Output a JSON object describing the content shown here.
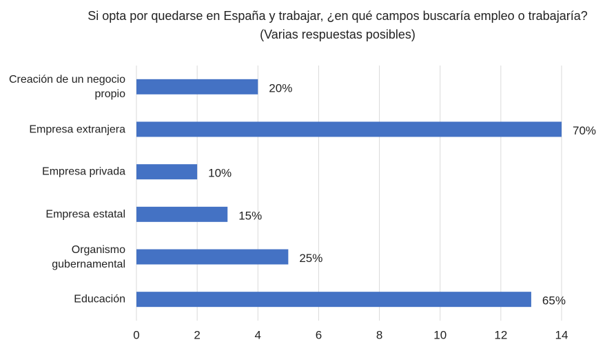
{
  "chart_data": {
    "type": "bar",
    "orientation": "horizontal",
    "title": "Si opta por quedarse en España y trabajar, ¿en qué campos buscaría empleo o trabajaría? (Varias respuestas posibles)",
    "categories": [
      "Creación de un negocio propio",
      "Empresa extranjera",
      "Empresa privada",
      "Empresa estatal",
      "Organismo gubernamental",
      "Educación"
    ],
    "values": [
      4,
      14,
      2,
      3,
      5,
      13
    ],
    "value_labels": [
      "20%",
      "70%",
      "10%",
      "15%",
      "25%",
      "65%"
    ],
    "color": "#4472c4",
    "xlim": [
      0,
      14
    ],
    "xticks": [
      0,
      2,
      4,
      6,
      8,
      10,
      12,
      14
    ],
    "grid": true
  }
}
